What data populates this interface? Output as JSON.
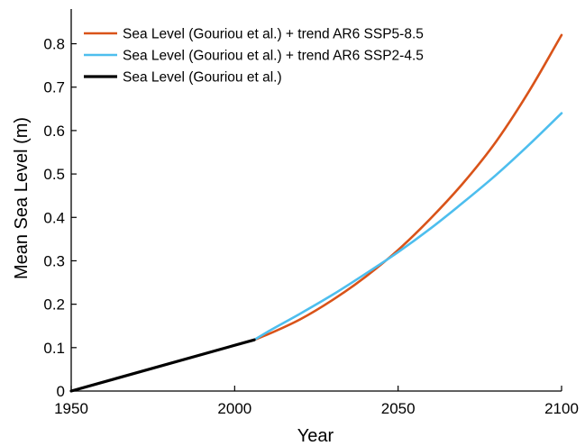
{
  "chart_data": {
    "type": "line",
    "title": "",
    "xlabel": "Year",
    "ylabel": "Mean Sea Level (m)",
    "xlim": [
      1950,
      2100
    ],
    "ylim": [
      0,
      0.88
    ],
    "xticks": [
      1950,
      2000,
      2050,
      2100
    ],
    "yticks": [
      0,
      0.1,
      0.2,
      0.3,
      0.4,
      0.5,
      0.6,
      0.7,
      0.8
    ],
    "xtick_labels": [
      "1950",
      "2000",
      "2050",
      "2100"
    ],
    "ytick_labels": [
      "0",
      "0.1",
      "0.2",
      "0.3",
      "0.4",
      "0.5",
      "0.6",
      "0.7",
      "0.8"
    ],
    "grid": false,
    "legend_position": "top-left",
    "series": [
      {
        "name": "Sea Level (Gouriou et al.) + trend AR6 SSP5-8.5",
        "color": "#d95319",
        "x": [
          2006,
          2010,
          2020,
          2030,
          2040,
          2050,
          2060,
          2070,
          2080,
          2090,
          2100
        ],
        "y": [
          0.118,
          0.13,
          0.165,
          0.21,
          0.263,
          0.325,
          0.398,
          0.48,
          0.575,
          0.69,
          0.82
        ]
      },
      {
        "name": "Sea Level (Gouriou et al.) + trend AR6 SSP2-4.5",
        "color": "#4dbeee",
        "x": [
          2006,
          2010,
          2020,
          2030,
          2040,
          2050,
          2060,
          2070,
          2080,
          2090,
          2100
        ],
        "y": [
          0.118,
          0.136,
          0.178,
          0.222,
          0.27,
          0.32,
          0.375,
          0.435,
          0.498,
          0.567,
          0.64
        ]
      },
      {
        "name": "Sea Level (Gouriou et al.)",
        "color": "#000000",
        "x": [
          1950,
          2006
        ],
        "y": [
          0,
          0.118
        ]
      }
    ]
  }
}
